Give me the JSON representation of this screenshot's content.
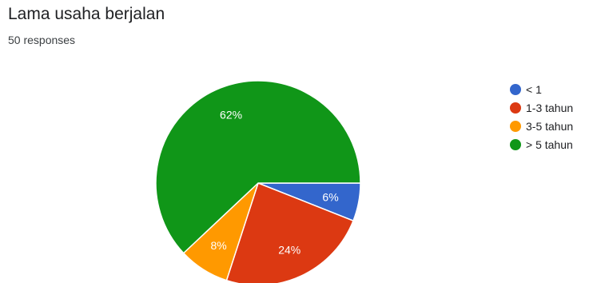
{
  "card": {
    "title": "Lama usaha berjalan",
    "response_count": "50 responses"
  },
  "chart_data": {
    "type": "pie",
    "title": "Lama usaha berjalan",
    "categories": [
      "< 1",
      "1-3 tahun",
      "3-5 tahun",
      "> 5 tahun"
    ],
    "values": [
      6,
      24,
      8,
      62
    ],
    "labels": [
      "6%",
      "24%",
      "8%",
      "62%"
    ],
    "colors": [
      "#3366cc",
      "#dc3912",
      "#ff9900",
      "#109618"
    ],
    "legend_position": "right",
    "total_responses": 50
  }
}
